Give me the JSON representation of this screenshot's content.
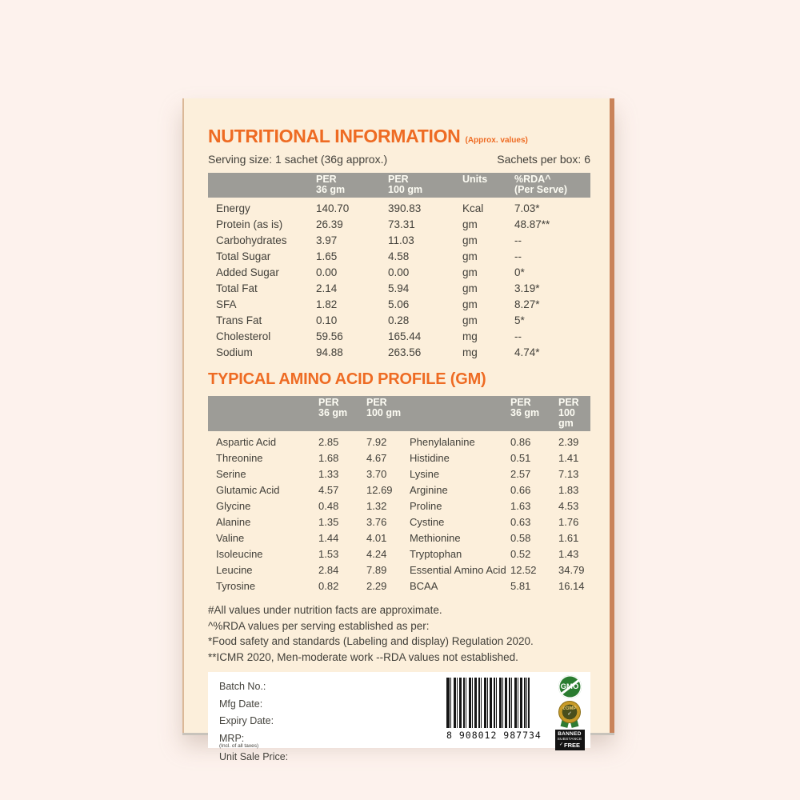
{
  "panel": {
    "title": "NUTRITIONAL INFORMATION",
    "title_note": "(Approx. values)",
    "serving_size": "Serving size: 1 sachet (36g approx.)",
    "sachets_per_box": "Sachets per box: 6",
    "accent_color": "#ee6b23",
    "header_bar_color": "#9d9c97",
    "panel_background": "#fcefdb",
    "page_background": "#fdf2ed"
  },
  "nutrition_table": {
    "headers": [
      [
        "PER",
        "36 gm"
      ],
      [
        "PER",
        "100 gm"
      ],
      [
        "Units",
        ""
      ],
      [
        "%RDA^",
        "(Per Serve)"
      ]
    ],
    "rows": [
      {
        "label": "Energy",
        "per36": "140.70",
        "per100": "390.83",
        "units": "Kcal",
        "rda": "7.03*"
      },
      {
        "label": "Protein (as is)",
        "per36": "26.39",
        "per100": "73.31",
        "units": "gm",
        "rda": "48.87**"
      },
      {
        "label": "Carbohydrates",
        "per36": "3.97",
        "per100": "11.03",
        "units": "gm",
        "rda": "--"
      },
      {
        "label": "Total Sugar",
        "per36": "1.65",
        "per100": "4.58",
        "units": "gm",
        "rda": "--"
      },
      {
        "label": "Added Sugar",
        "per36": "0.00",
        "per100": "0.00",
        "units": "gm",
        "rda": "0*"
      },
      {
        "label": "Total Fat",
        "per36": "2.14",
        "per100": "5.94",
        "units": "gm",
        "rda": "3.19*"
      },
      {
        "label": "SFA",
        "per36": "1.82",
        "per100": "5.06",
        "units": "gm",
        "rda": "8.27*"
      },
      {
        "label": "Trans Fat",
        "per36": "0.10",
        "per100": "0.28",
        "units": "gm",
        "rda": "5*"
      },
      {
        "label": "Cholesterol",
        "per36": "59.56",
        "per100": "165.44",
        "units": "mg",
        "rda": "--"
      },
      {
        "label": "Sodium",
        "per36": "94.88",
        "per100": "263.56",
        "units": "mg",
        "rda": "4.74*"
      }
    ]
  },
  "amino_table": {
    "heading": "TYPICAL AMINO ACID PROFILE (GM)",
    "headers": [
      [
        "PER",
        "36 gm"
      ],
      [
        "PER",
        "100 gm"
      ],
      [
        "PER",
        "36 gm"
      ],
      [
        "PER",
        "100 gm"
      ]
    ],
    "left_rows": [
      {
        "label": "Aspartic Acid",
        "per36": "2.85",
        "per100": "7.92"
      },
      {
        "label": "Threonine",
        "per36": "1.68",
        "per100": "4.67"
      },
      {
        "label": "Serine",
        "per36": "1.33",
        "per100": "3.70"
      },
      {
        "label": "Glutamic Acid",
        "per36": "4.57",
        "per100": "12.69"
      },
      {
        "label": "Glycine",
        "per36": "0.48",
        "per100": "1.32"
      },
      {
        "label": "Alanine",
        "per36": "1.35",
        "per100": "3.76"
      },
      {
        "label": "Valine",
        "per36": "1.44",
        "per100": "4.01"
      },
      {
        "label": "Isoleucine",
        "per36": "1.53",
        "per100": "4.24"
      },
      {
        "label": "Leucine",
        "per36": "2.84",
        "per100": "7.89"
      },
      {
        "label": "Tyrosine",
        "per36": "0.82",
        "per100": "2.29"
      }
    ],
    "right_rows": [
      {
        "label": "Phenylalanine",
        "per36": "0.86",
        "per100": "2.39"
      },
      {
        "label": "Histidine",
        "per36": "0.51",
        "per100": "1.41"
      },
      {
        "label": "Lysine",
        "per36": "2.57",
        "per100": "7.13"
      },
      {
        "label": "Arginine",
        "per36": "0.66",
        "per100": "1.83"
      },
      {
        "label": "Proline",
        "per36": "1.63",
        "per100": "4.53"
      },
      {
        "label": "Cystine",
        "per36": "0.63",
        "per100": "1.76"
      },
      {
        "label": "Methionine",
        "per36": "0.58",
        "per100": "1.61"
      },
      {
        "label": "Tryptophan",
        "per36": "0.52",
        "per100": "1.43"
      },
      {
        "label": "Essential Amino Acid",
        "per36": "12.52",
        "per100": "34.79"
      },
      {
        "label": "BCAA",
        "per36": "5.81",
        "per100": "16.14"
      }
    ]
  },
  "footnotes": [
    "#All values under nutrition facts are approximate.",
    "^%RDA values per serving established as per:",
    "*Food safety and standards (Labeling and display) Regulation 2020.",
    "**ICMR 2020, Men-moderate work  --RDA values not established."
  ],
  "info_box": {
    "batch_no": "Batch No.:",
    "mfg_date": "Mfg Date:",
    "expiry_date": "Expiry Date:",
    "mrp": "MRP:",
    "mrp_note": "(Incl. of all taxes)",
    "unit_sale_price": "Unit Sale Price:",
    "barcode_digits": "8 908012 987734"
  },
  "badges": {
    "gmo": "GMO",
    "cgmp": "cGMP",
    "cgmp_check": "✓",
    "banned_check": "✓",
    "banned": [
      "BANNED",
      "SUBSTANCE",
      "FREE"
    ]
  }
}
